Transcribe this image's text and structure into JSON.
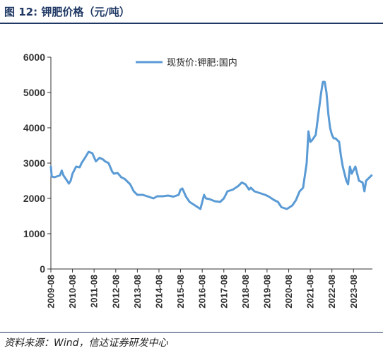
{
  "figure": {
    "label": "图 12:",
    "title": "钾肥价格（元/吨）",
    "source": "资料来源：Wind，信达证券研发中心"
  },
  "chart_data": {
    "type": "line",
    "ylim": [
      0,
      6000
    ],
    "yticks": [
      0,
      1000,
      2000,
      3000,
      4000,
      5000,
      6000
    ],
    "xticks": [
      "2009-08",
      "2010-08",
      "2011-08",
      "2012-08",
      "2013-08",
      "2014-08",
      "2015-08",
      "2016-08",
      "2017-08",
      "2018-08",
      "2019-08",
      "2020-08",
      "2021-08",
      "2022-08",
      "2023-08"
    ],
    "grid": false,
    "legend_position": "top-center",
    "series": [
      {
        "name": "现货价:钾肥:国内",
        "color": "#5b9bd5",
        "points": [
          [
            "2009-08-01",
            2900
          ],
          [
            "2009-08-15",
            2620
          ],
          [
            "2009-10-01",
            2600
          ],
          [
            "2010-01-01",
            2650
          ],
          [
            "2010-02-01",
            2790
          ],
          [
            "2010-03-01",
            2650
          ],
          [
            "2010-05-01",
            2500
          ],
          [
            "2010-06-01",
            2420
          ],
          [
            "2010-07-01",
            2500
          ],
          [
            "2010-08-01",
            2700
          ],
          [
            "2010-09-01",
            2800
          ],
          [
            "2010-10-01",
            2900
          ],
          [
            "2010-12-01",
            2880
          ],
          [
            "2011-01-01",
            3000
          ],
          [
            "2011-03-01",
            3150
          ],
          [
            "2011-05-01",
            3320
          ],
          [
            "2011-07-01",
            3280
          ],
          [
            "2011-09-01",
            3050
          ],
          [
            "2011-11-01",
            3150
          ],
          [
            "2012-01-01",
            3100
          ],
          [
            "2012-02-01",
            3050
          ],
          [
            "2012-04-01",
            3000
          ],
          [
            "2012-06-01",
            2760
          ],
          [
            "2012-07-01",
            2700
          ],
          [
            "2012-09-01",
            2720
          ],
          [
            "2012-11-01",
            2600
          ],
          [
            "2013-01-01",
            2550
          ],
          [
            "2013-04-01",
            2400
          ],
          [
            "2013-06-01",
            2200
          ],
          [
            "2013-08-01",
            2100
          ],
          [
            "2013-11-01",
            2100
          ],
          [
            "2014-02-01",
            2050
          ],
          [
            "2014-05-01",
            2000
          ],
          [
            "2014-07-01",
            2060
          ],
          [
            "2014-10-01",
            2060
          ],
          [
            "2015-01-01",
            2080
          ],
          [
            "2015-04-01",
            2050
          ],
          [
            "2015-07-01",
            2100
          ],
          [
            "2015-08-01",
            2250
          ],
          [
            "2015-09-01",
            2280
          ],
          [
            "2015-11-01",
            2050
          ],
          [
            "2016-01-01",
            1900
          ],
          [
            "2016-04-01",
            1800
          ],
          [
            "2016-07-01",
            1700
          ],
          [
            "2016-08-01",
            1900
          ],
          [
            "2016-09-01",
            2100
          ],
          [
            "2016-10-01",
            2000
          ],
          [
            "2016-12-01",
            1980
          ],
          [
            "2017-03-01",
            1920
          ],
          [
            "2017-06-01",
            1900
          ],
          [
            "2017-08-01",
            2000
          ],
          [
            "2017-10-01",
            2200
          ],
          [
            "2018-01-01",
            2250
          ],
          [
            "2018-04-01",
            2350
          ],
          [
            "2018-06-01",
            2450
          ],
          [
            "2018-08-01",
            2400
          ],
          [
            "2018-10-01",
            2250
          ],
          [
            "2018-11-01",
            2300
          ],
          [
            "2019-01-01",
            2200
          ],
          [
            "2019-04-01",
            2150
          ],
          [
            "2019-07-01",
            2100
          ],
          [
            "2019-09-01",
            2050
          ],
          [
            "2019-12-01",
            1950
          ],
          [
            "2020-02-01",
            1900
          ],
          [
            "2020-04-01",
            1750
          ],
          [
            "2020-07-01",
            1700
          ],
          [
            "2020-10-01",
            1800
          ],
          [
            "2020-12-01",
            1950
          ],
          [
            "2021-02-01",
            2200
          ],
          [
            "2021-04-01",
            2300
          ],
          [
            "2021-06-01",
            3000
          ],
          [
            "2021-07-01",
            3900
          ],
          [
            "2021-08-01",
            3600
          ],
          [
            "2021-09-01",
            3650
          ],
          [
            "2021-11-01",
            3800
          ],
          [
            "2022-01-01",
            4600
          ],
          [
            "2022-02-01",
            5000
          ],
          [
            "2022-03-01",
            5300
          ],
          [
            "2022-04-01",
            5300
          ],
          [
            "2022-05-01",
            5000
          ],
          [
            "2022-06-01",
            4400
          ],
          [
            "2022-07-01",
            4000
          ],
          [
            "2022-08-01",
            3800
          ],
          [
            "2022-09-01",
            3700
          ],
          [
            "2022-10-01",
            3700
          ],
          [
            "2022-12-01",
            3600
          ],
          [
            "2023-01-01",
            3200
          ],
          [
            "2023-02-01",
            2900
          ],
          [
            "2023-04-01",
            2500
          ],
          [
            "2023-05-01",
            2400
          ],
          [
            "2023-06-01",
            2900
          ],
          [
            "2023-07-01",
            2700
          ],
          [
            "2023-09-01",
            2900
          ],
          [
            "2023-11-01",
            2500
          ],
          [
            "2024-01-01",
            2450
          ],
          [
            "2024-02-01",
            2200
          ],
          [
            "2024-03-01",
            2500
          ],
          [
            "2024-05-01",
            2600
          ],
          [
            "2024-06-01",
            2650
          ]
        ]
      }
    ]
  }
}
